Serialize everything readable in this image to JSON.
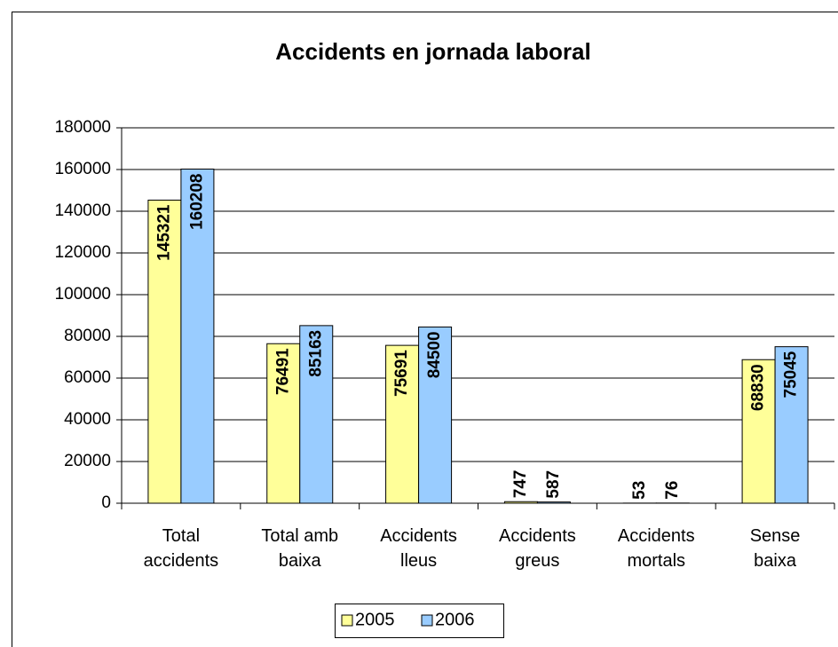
{
  "chart_data": {
    "type": "bar",
    "title": "Accidents en jornada laboral",
    "categories": [
      "Total accidents",
      "Total amb baixa",
      "Accidents lleus",
      "Accidents greus",
      "Accidents mortals",
      "Sense baixa"
    ],
    "series": [
      {
        "name": "2005",
        "color": "#ffff99",
        "values": [
          145321,
          76491,
          75691,
          747,
          53,
          68830
        ]
      },
      {
        "name": "2006",
        "color": "#99ccff",
        "values": [
          160208,
          85163,
          84500,
          587,
          76,
          75045
        ]
      }
    ],
    "ylim": [
      0,
      180000
    ],
    "yticks": [
      0,
      20000,
      40000,
      60000,
      80000,
      100000,
      120000,
      140000,
      160000,
      180000
    ],
    "grid": true,
    "legend": "bottom"
  }
}
